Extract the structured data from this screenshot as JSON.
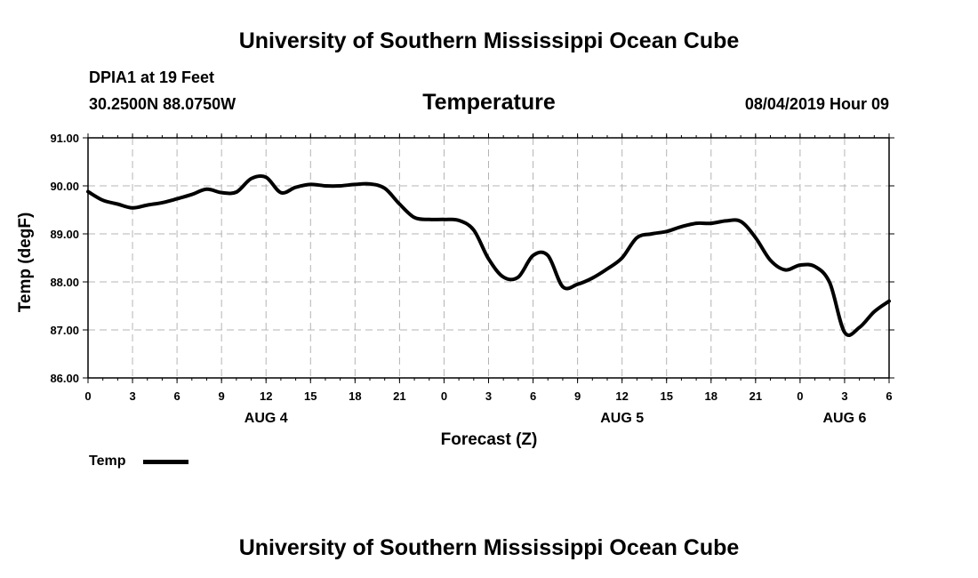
{
  "header": {
    "title_top": "University of Southern Mississippi Ocean Cube",
    "station": "DPIA1 at 19 Feet",
    "coords": "30.2500N 88.0750W",
    "chart_title": "Temperature",
    "datetime": "08/04/2019 Hour 09"
  },
  "footer": {
    "title_bottom": "University of Southern Mississippi Ocean Cube"
  },
  "legend": {
    "label": "Temp"
  },
  "colors": {
    "line": "#000000",
    "grid": "#b4b4b4",
    "background": "#ffffff"
  },
  "chart_data": {
    "type": "line",
    "title": "Temperature",
    "xlabel": "Forecast (Z)",
    "ylabel": "Temp (degF)",
    "ylim": [
      86.0,
      91.0
    ],
    "yticks": [
      "86.00",
      "87.00",
      "88.00",
      "89.00",
      "90.00",
      "91.00"
    ],
    "xlim_hours": [
      0,
      54
    ],
    "xtick_hours": [
      0,
      3,
      6,
      9,
      12,
      15,
      18,
      21,
      24,
      27,
      30,
      33,
      36,
      39,
      42,
      45,
      48,
      51,
      54
    ],
    "xtick_labels": [
      "0",
      "3",
      "6",
      "9",
      "12",
      "15",
      "18",
      "21",
      "0",
      "3",
      "6",
      "9",
      "12",
      "15",
      "18",
      "21",
      "0",
      "3",
      "6"
    ],
    "day_labels": [
      {
        "hour": 12,
        "label": "AUG 4"
      },
      {
        "hour": 36,
        "label": "AUG 5"
      },
      {
        "hour": 51,
        "label": "AUG 6"
      }
    ],
    "grid": true,
    "series": [
      {
        "name": "Temp",
        "x": [
          0,
          1,
          2,
          3,
          4,
          5,
          6,
          7,
          8,
          9,
          10,
          11,
          12,
          13,
          14,
          15,
          16,
          17,
          18,
          19,
          20,
          21,
          22,
          23,
          24,
          25,
          26,
          27,
          28,
          29,
          30,
          31,
          32,
          33,
          34,
          35,
          36,
          37,
          38,
          39,
          40,
          41,
          42,
          43,
          44,
          45,
          46,
          47,
          48,
          49,
          50,
          51,
          52,
          53,
          54
        ],
        "values": [
          89.88,
          89.7,
          89.62,
          89.54,
          89.6,
          89.65,
          89.73,
          89.82,
          89.93,
          89.86,
          89.87,
          90.15,
          90.18,
          89.86,
          89.97,
          90.03,
          90.0,
          90.0,
          90.03,
          90.04,
          89.95,
          89.62,
          89.34,
          89.3,
          89.3,
          89.28,
          89.08,
          88.48,
          88.1,
          88.1,
          88.55,
          88.55,
          87.9,
          87.95,
          88.08,
          88.27,
          88.5,
          88.92,
          89.0,
          89.05,
          89.15,
          89.22,
          89.22,
          89.27,
          89.26,
          88.92,
          88.45,
          88.25,
          88.35,
          88.32,
          87.98,
          86.95,
          87.05,
          87.38,
          87.6
        ]
      }
    ]
  }
}
